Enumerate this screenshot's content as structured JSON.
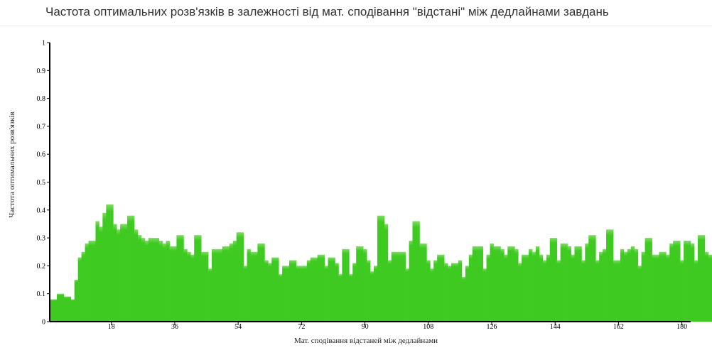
{
  "title": "Частота оптимальних розв'язків в залежності від мат. сподівання \"відстані\" між дедлайнами завдань",
  "chart_data": {
    "type": "bar",
    "title": "Частота оптимальних розв'язків в залежності від мат. сподівання \"відстані\" між дедлайнами завдань",
    "xlabel": "Мат. сподівання відстаней між дедлайнами",
    "ylabel": "Частота оптимальних розв'язків",
    "x_start": 1,
    "x_step": 1,
    "xlim": [
      0.5,
      182.5
    ],
    "ylim": [
      0,
      1
    ],
    "x_ticks": [
      18,
      36,
      54,
      72,
      90,
      108,
      126,
      144,
      162,
      180
    ],
    "y_ticks": [
      0,
      0.1,
      0.2,
      0.3,
      0.4,
      0.5,
      0.6,
      0.7,
      0.8,
      0.9,
      1
    ],
    "y_tick_labels": [
      "0",
      "0.1",
      "0.2",
      "0.3",
      "0.4",
      "0.5",
      "0.6",
      "0.7",
      "0.8",
      "0.9",
      "1"
    ],
    "grid": false,
    "bar_color": "#3fca21",
    "values": [
      0.08,
      0.08,
      0.1,
      0.1,
      0.09,
      0.09,
      0.08,
      0.15,
      0.23,
      0.25,
      0.28,
      0.29,
      0.29,
      0.36,
      0.34,
      0.39,
      0.42,
      0.42,
      0.35,
      0.33,
      0.35,
      0.35,
      0.38,
      0.38,
      0.33,
      0.31,
      0.3,
      0.29,
      0.3,
      0.3,
      0.3,
      0.29,
      0.28,
      0.29,
      0.27,
      0.27,
      0.31,
      0.31,
      0.26,
      0.25,
      0.24,
      0.31,
      0.31,
      0.25,
      0.25,
      0.19,
      0.26,
      0.26,
      0.26,
      0.27,
      0.27,
      0.28,
      0.29,
      0.32,
      0.32,
      0.2,
      0.26,
      0.25,
      0.25,
      0.28,
      0.28,
      0.22,
      0.21,
      0.23,
      0.23,
      0.17,
      0.2,
      0.2,
      0.22,
      0.22,
      0.2,
      0.2,
      0.2,
      0.22,
      0.23,
      0.23,
      0.24,
      0.24,
      0.2,
      0.23,
      0.23,
      0.21,
      0.17,
      0.26,
      0.26,
      0.17,
      0.21,
      0.27,
      0.27,
      0.26,
      0.22,
      0.18,
      0.2,
      0.38,
      0.38,
      0.35,
      0.22,
      0.25,
      0.25,
      0.25,
      0.25,
      0.19,
      0.29,
      0.36,
      0.36,
      0.28,
      0.28,
      0.22,
      0.19,
      0.22,
      0.24,
      0.24,
      0.21,
      0.2,
      0.21,
      0.21,
      0.22,
      0.16,
      0.2,
      0.24,
      0.27,
      0.27,
      0.27,
      0.19,
      0.24,
      0.28,
      0.27,
      0.27,
      0.26,
      0.24,
      0.27,
      0.27,
      0.26,
      0.21,
      0.24,
      0.24,
      0.26,
      0.25,
      0.27,
      0.24,
      0.22,
      0.24,
      0.3,
      0.3,
      0.22,
      0.28,
      0.28,
      0.27,
      0.24,
      0.27,
      0.27,
      0.22,
      0.28,
      0.31,
      0.31,
      0.22,
      0.25,
      0.26,
      0.33,
      0.33,
      0.22,
      0.22,
      0.26,
      0.25,
      0.26,
      0.27,
      0.26,
      0.2,
      0.25,
      0.3,
      0.3,
      0.24,
      0.24,
      0.25,
      0.25,
      0.24,
      0.28,
      0.29,
      0.29,
      0.22,
      0.29,
      0.29,
      0.28,
      0.22,
      0.31,
      0.31,
      0.25,
      0.24
    ]
  }
}
